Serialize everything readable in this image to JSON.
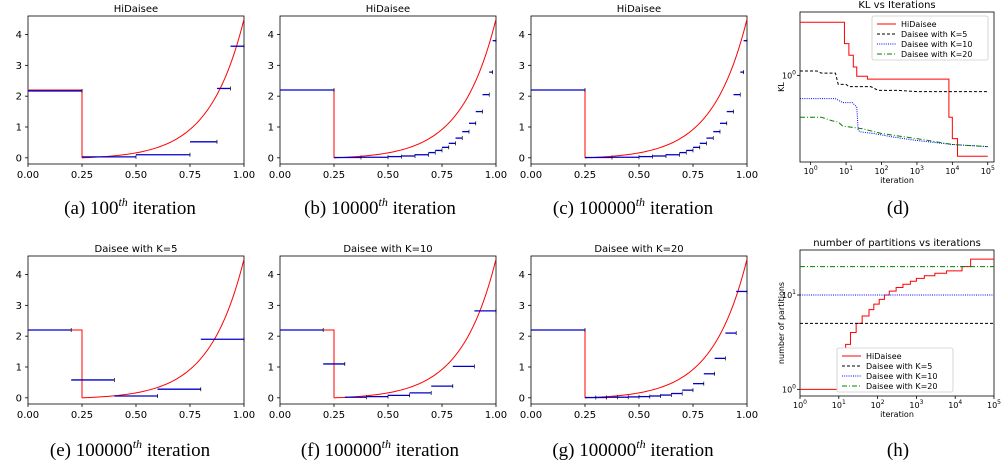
{
  "figure": {
    "colors": {
      "hidaisee": "#ff0000",
      "k5": "#000000",
      "k10": "#0000ff",
      "k20": "#008000",
      "bars": "#0000cc"
    },
    "panels": [
      {
        "id": "a",
        "type": "step-approximation",
        "title": "HiDaisee",
        "caption": {
          "prefix": "(a) 100",
          "sup": "th",
          "suffix": " iteration"
        },
        "xlim": [
          0,
          1
        ],
        "ylim": [
          -0.2,
          4.6
        ],
        "xticks": [
          "0.00",
          "0.25",
          "0.50",
          "0.75",
          "1.00"
        ],
        "xtick_values": [
          0,
          0.25,
          0.5,
          0.75,
          1.0
        ],
        "yticks": [
          "0",
          "1",
          "2",
          "3",
          "4"
        ],
        "ytick_values": [
          0,
          1,
          2,
          3,
          4
        ],
        "segments": [
          {
            "x0": 0.0,
            "x1": 0.25,
            "y": 2.17
          },
          {
            "x0": 0.25,
            "x1": 0.5,
            "y": 0.03
          },
          {
            "x0": 0.5,
            "x1": 0.75,
            "y": 0.1
          },
          {
            "x0": 0.75,
            "x1": 0.875,
            "y": 0.52
          },
          {
            "x0": 0.875,
            "x1": 0.9375,
            "y": 2.25
          },
          {
            "x0": 0.9375,
            "x1": 1.0,
            "y": 3.62
          }
        ]
      },
      {
        "id": "b",
        "type": "step-approximation",
        "title": "HiDaisee",
        "caption": {
          "prefix": "(b) 10000",
          "sup": "th",
          "suffix": " iteration"
        },
        "xlim": [
          0,
          1
        ],
        "ylim": [
          -0.2,
          4.6
        ],
        "xticks": [
          "0.00",
          "0.25",
          "0.50",
          "0.75",
          "1.00"
        ],
        "xtick_values": [
          0,
          0.25,
          0.5,
          0.75,
          1.0
        ],
        "yticks": [
          "0",
          "1",
          "2",
          "3",
          "4"
        ],
        "ytick_values": [
          0,
          1,
          2,
          3,
          4
        ],
        "segments": [
          {
            "x0": 0.0,
            "x1": 0.25,
            "y": 2.2
          },
          {
            "x0": 0.25,
            "x1": 0.375,
            "y": 0.01
          },
          {
            "x0": 0.375,
            "x1": 0.5,
            "y": 0.02
          },
          {
            "x0": 0.5,
            "x1": 0.5625,
            "y": 0.04
          },
          {
            "x0": 0.5625,
            "x1": 0.625,
            "y": 0.06
          },
          {
            "x0": 0.625,
            "x1": 0.6875,
            "y": 0.1
          },
          {
            "x0": 0.6875,
            "x1": 0.71875,
            "y": 0.17
          },
          {
            "x0": 0.71875,
            "x1": 0.75,
            "y": 0.24
          },
          {
            "x0": 0.75,
            "x1": 0.78125,
            "y": 0.34
          },
          {
            "x0": 0.78125,
            "x1": 0.8125,
            "y": 0.47
          },
          {
            "x0": 0.8125,
            "x1": 0.84375,
            "y": 0.64
          },
          {
            "x0": 0.84375,
            "x1": 0.875,
            "y": 0.85
          },
          {
            "x0": 0.875,
            "x1": 0.90625,
            "y": 1.12
          },
          {
            "x0": 0.90625,
            "x1": 0.9375,
            "y": 1.5
          },
          {
            "x0": 0.9375,
            "x1": 0.96875,
            "y": 2.05
          },
          {
            "x0": 0.96875,
            "x1": 0.984375,
            "y": 2.78
          },
          {
            "x0": 0.984375,
            "x1": 1.0,
            "y": 3.8
          }
        ]
      },
      {
        "id": "c",
        "type": "step-approximation",
        "title": "HiDaisee",
        "caption": {
          "prefix": "(c) 100000",
          "sup": "th",
          "suffix": " iteration"
        },
        "xlim": [
          0,
          1
        ],
        "ylim": [
          -0.2,
          4.6
        ],
        "xticks": [
          "0.00",
          "0.25",
          "0.50",
          "0.75",
          "1.00"
        ],
        "xtick_values": [
          0,
          0.25,
          0.5,
          0.75,
          1.0
        ],
        "yticks": [
          "0",
          "1",
          "2",
          "3",
          "4"
        ],
        "ytick_values": [
          0,
          1,
          2,
          3,
          4
        ],
        "segments": [
          {
            "x0": 0.0,
            "x1": 0.25,
            "y": 2.2
          },
          {
            "x0": 0.25,
            "x1": 0.375,
            "y": 0.01
          },
          {
            "x0": 0.375,
            "x1": 0.5,
            "y": 0.02
          },
          {
            "x0": 0.5,
            "x1": 0.5625,
            "y": 0.04
          },
          {
            "x0": 0.5625,
            "x1": 0.625,
            "y": 0.06
          },
          {
            "x0": 0.625,
            "x1": 0.6875,
            "y": 0.1
          },
          {
            "x0": 0.6875,
            "x1": 0.71875,
            "y": 0.17
          },
          {
            "x0": 0.71875,
            "x1": 0.75,
            "y": 0.24
          },
          {
            "x0": 0.75,
            "x1": 0.78125,
            "y": 0.34
          },
          {
            "x0": 0.78125,
            "x1": 0.8125,
            "y": 0.47
          },
          {
            "x0": 0.8125,
            "x1": 0.84375,
            "y": 0.64
          },
          {
            "x0": 0.84375,
            "x1": 0.875,
            "y": 0.85
          },
          {
            "x0": 0.875,
            "x1": 0.90625,
            "y": 1.12
          },
          {
            "x0": 0.90625,
            "x1": 0.9375,
            "y": 1.5
          },
          {
            "x0": 0.9375,
            "x1": 0.96875,
            "y": 2.05
          },
          {
            "x0": 0.96875,
            "x1": 0.984375,
            "y": 2.78
          },
          {
            "x0": 0.984375,
            "x1": 1.0,
            "y": 3.8
          }
        ]
      },
      {
        "id": "d",
        "type": "log-line",
        "title": "KL vs Iterations",
        "caption": {
          "prefix": "(d)",
          "sup": "",
          "suffix": ""
        },
        "xlabel": "iteration",
        "ylabel": "KL",
        "xlim": [
          0.5,
          150000
        ],
        "ylim": [
          0.15,
          4.0
        ],
        "xticks": [
          "10",
          "10",
          "10",
          "10",
          "10",
          "10"
        ],
        "xtick_exps": [
          "0",
          "1",
          "2",
          "3",
          "4",
          "5"
        ],
        "xtick_values": [
          1,
          10,
          100,
          1000,
          10000,
          100000
        ],
        "yticks": [
          "10"
        ],
        "ytick_exps": [
          "0"
        ],
        "ytick_values": [
          1
        ],
        "legend": {
          "loc": "upper-right",
          "entries": [
            "HiDaisee",
            "Daisee with K=5",
            "Daisee with K=10",
            "Daisee with K=20"
          ]
        },
        "series": [
          {
            "key": "hidaisee",
            "x": [
              0.5,
              9,
              9,
              12,
              12,
              16,
              16,
              20,
              20,
              40,
              40,
              8000,
              8000,
              10000,
              10000,
              14000,
              14000,
              100000
            ],
            "y": [
              3.2,
              3.2,
              2.0,
              2.0,
              1.55,
              1.55,
              1.2,
              1.2,
              0.98,
              0.98,
              0.92,
              0.92,
              0.4,
              0.4,
              0.25,
              0.25,
              0.17,
              0.17
            ]
          },
          {
            "key": "k5",
            "x": [
              0.5,
              1.5,
              2,
              5,
              6,
              10,
              12,
              50,
              80,
              300,
              1000,
              100000
            ],
            "y": [
              1.1,
              1.1,
              1.05,
              1.05,
              0.82,
              0.82,
              0.78,
              0.78,
              0.72,
              0.72,
              0.7,
              0.7
            ]
          },
          {
            "key": "k10",
            "x": [
              0.5,
              5,
              8,
              15,
              20,
              22,
              25,
              60,
              200,
              1000,
              10000,
              100000
            ],
            "y": [
              0.6,
              0.6,
              0.55,
              0.55,
              0.5,
              0.3,
              0.29,
              0.28,
              0.26,
              0.24,
              0.22,
              0.21
            ]
          },
          {
            "key": "k20",
            "x": [
              0.5,
              2,
              4,
              6,
              8,
              30,
              100,
              1000,
              10000,
              100000
            ],
            "y": [
              0.4,
              0.4,
              0.37,
              0.36,
              0.33,
              0.31,
              0.28,
              0.25,
              0.22,
              0.21
            ]
          }
        ]
      },
      {
        "id": "e",
        "type": "step-approximation",
        "title": "Daisee with K=5",
        "caption": {
          "prefix": "(e) 100000",
          "sup": "th",
          "suffix": " iteration"
        },
        "xlim": [
          0,
          1
        ],
        "ylim": [
          -0.2,
          4.6
        ],
        "xticks": [
          "0.00",
          "0.25",
          "0.50",
          "0.75",
          "1.00"
        ],
        "xtick_values": [
          0,
          0.25,
          0.5,
          0.75,
          1.0
        ],
        "yticks": [
          "0",
          "1",
          "2",
          "3",
          "4"
        ],
        "ytick_values": [
          0,
          1,
          2,
          3,
          4
        ],
        "segments": [
          {
            "x0": 0.0,
            "x1": 0.2,
            "y": 2.2
          },
          {
            "x0": 0.2,
            "x1": 0.4,
            "y": 0.58
          },
          {
            "x0": 0.4,
            "x1": 0.6,
            "y": 0.06
          },
          {
            "x0": 0.6,
            "x1": 0.8,
            "y": 0.28
          },
          {
            "x0": 0.8,
            "x1": 1.0,
            "y": 1.9
          }
        ]
      },
      {
        "id": "f",
        "type": "step-approximation",
        "title": "Daisee with K=10",
        "caption": {
          "prefix": "(f) 100000",
          "sup": "th",
          "suffix": " iteration"
        },
        "xlim": [
          0,
          1
        ],
        "ylim": [
          -0.2,
          4.6
        ],
        "xticks": [
          "0.00",
          "0.25",
          "0.50",
          "0.75",
          "1.00"
        ],
        "xtick_values": [
          0,
          0.25,
          0.5,
          0.75,
          1.0
        ],
        "yticks": [
          "0",
          "1",
          "2",
          "3",
          "4"
        ],
        "ytick_values": [
          0,
          1,
          2,
          3,
          4
        ],
        "segments": [
          {
            "x0": 0.0,
            "x1": 0.2,
            "y": 2.2
          },
          {
            "x0": 0.2,
            "x1": 0.3,
            "y": 1.1
          },
          {
            "x0": 0.3,
            "x1": 0.4,
            "y": 0.02
          },
          {
            "x0": 0.4,
            "x1": 0.5,
            "y": 0.04
          },
          {
            "x0": 0.5,
            "x1": 0.6,
            "y": 0.08
          },
          {
            "x0": 0.6,
            "x1": 0.7,
            "y": 0.16
          },
          {
            "x0": 0.7,
            "x1": 0.8,
            "y": 0.38
          },
          {
            "x0": 0.8,
            "x1": 0.9,
            "y": 1.02
          },
          {
            "x0": 0.9,
            "x1": 1.0,
            "y": 2.82
          }
        ]
      },
      {
        "id": "g",
        "type": "step-approximation",
        "title": "Daisee with K=20",
        "caption": {
          "prefix": "(g) 100000",
          "sup": "th",
          "suffix": " iteration"
        },
        "xlim": [
          0,
          1
        ],
        "ylim": [
          -0.2,
          4.6
        ],
        "xticks": [
          "0.00",
          "0.25",
          "0.50",
          "0.75",
          "1.00"
        ],
        "xtick_values": [
          0,
          0.25,
          0.5,
          0.75,
          1.0
        ],
        "yticks": [
          "0",
          "1",
          "2",
          "3",
          "4"
        ],
        "ytick_values": [
          0,
          1,
          2,
          3,
          4
        ],
        "segments": [
          {
            "x0": 0.0,
            "x1": 0.25,
            "y": 2.2
          },
          {
            "x0": 0.25,
            "x1": 0.3,
            "y": 0.01
          },
          {
            "x0": 0.3,
            "x1": 0.35,
            "y": 0.01
          },
          {
            "x0": 0.35,
            "x1": 0.4,
            "y": 0.02
          },
          {
            "x0": 0.4,
            "x1": 0.45,
            "y": 0.02
          },
          {
            "x0": 0.45,
            "x1": 0.5,
            "y": 0.03
          },
          {
            "x0": 0.5,
            "x1": 0.55,
            "y": 0.04
          },
          {
            "x0": 0.55,
            "x1": 0.6,
            "y": 0.06
          },
          {
            "x0": 0.6,
            "x1": 0.65,
            "y": 0.09
          },
          {
            "x0": 0.65,
            "x1": 0.7,
            "y": 0.14
          },
          {
            "x0": 0.7,
            "x1": 0.75,
            "y": 0.25
          },
          {
            "x0": 0.75,
            "x1": 0.8,
            "y": 0.46
          },
          {
            "x0": 0.8,
            "x1": 0.85,
            "y": 0.78
          },
          {
            "x0": 0.85,
            "x1": 0.9,
            "y": 1.28
          },
          {
            "x0": 0.9,
            "x1": 0.95,
            "y": 2.1
          },
          {
            "x0": 0.95,
            "x1": 1.0,
            "y": 3.45
          }
        ]
      },
      {
        "id": "h",
        "type": "log-line",
        "title": "number of partitions vs iterations",
        "caption": {
          "prefix": "(h)",
          "sup": "",
          "suffix": ""
        },
        "xlabel": "iteration",
        "ylabel": "number of partitions",
        "xlim": [
          1,
          100000
        ],
        "ylim": [
          0.85,
          30
        ],
        "xticks": [
          "10",
          "10",
          "10",
          "10",
          "10",
          "10"
        ],
        "xtick_exps": [
          "0",
          "1",
          "2",
          "3",
          "4",
          "5"
        ],
        "xtick_values": [
          1,
          10,
          100,
          1000,
          10000,
          100000
        ],
        "yticks": [
          "10",
          "10"
        ],
        "ytick_exps": [
          "0",
          "1"
        ],
        "ytick_values": [
          1,
          10
        ],
        "legend": {
          "loc": "lower-center",
          "entries": [
            "HiDaisee",
            "Daisee with K=5",
            "Daisee with K=10",
            "Daisee with K=20"
          ]
        },
        "series": [
          {
            "key": "hidaisee",
            "x": [
              1,
              9.5,
              9.5,
              15,
              15,
              20,
              20,
              28,
              28,
              40,
              40,
              60,
              60,
              80,
              80,
              110,
              110,
              150,
              150,
              200,
              200,
              300,
              300,
              450,
              450,
              700,
              700,
              1000,
              1000,
              1600,
              1600,
              3000,
              3000,
              6000,
              6000,
              15000,
              15000,
              25000,
              25000,
              100000
            ],
            "y": [
              1,
              1,
              2,
              2,
              3,
              3,
              4,
              4,
              5,
              5,
              6,
              6,
              7,
              7,
              8,
              8,
              9,
              9,
              10,
              10,
              11,
              11,
              12,
              12,
              13,
              13,
              14,
              14,
              15,
              15,
              16,
              16,
              17,
              17,
              18,
              18,
              20,
              20,
              24,
              24
            ]
          },
          {
            "key": "k5",
            "x": [
              1,
              100000
            ],
            "y": [
              5,
              5
            ]
          },
          {
            "key": "k10",
            "x": [
              1,
              100000
            ],
            "y": [
              10,
              10
            ]
          },
          {
            "key": "k20",
            "x": [
              1,
              100000
            ],
            "y": [
              20,
              20
            ]
          }
        ]
      }
    ]
  }
}
